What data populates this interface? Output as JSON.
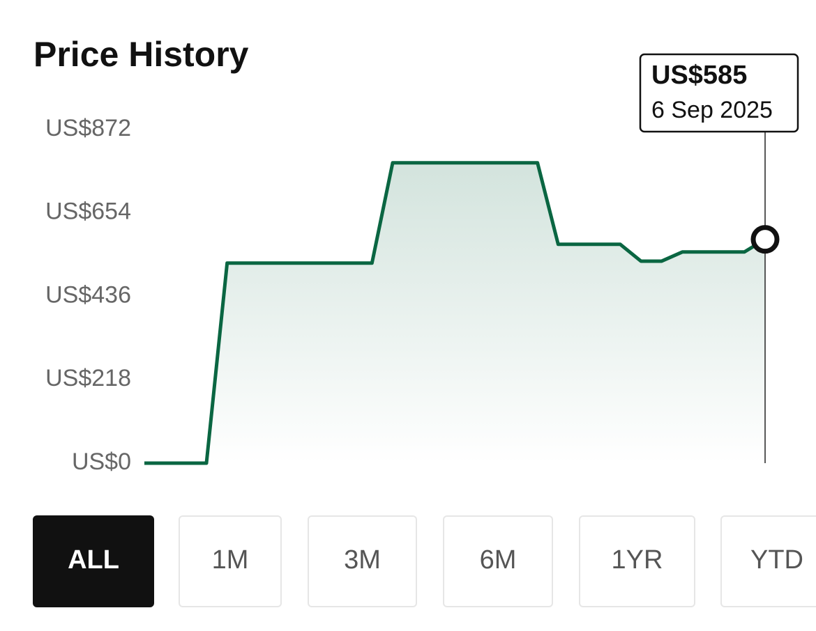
{
  "title": "Price History",
  "chart_data": {
    "type": "line",
    "categories": [
      null,
      null,
      null,
      null,
      null,
      null,
      null,
      null,
      null,
      null,
      null,
      null,
      null,
      null,
      null,
      null,
      null,
      null,
      null,
      null,
      null,
      null,
      null,
      null,
      null,
      null,
      null,
      null,
      null,
      null,
      null
    ],
    "series": [
      {
        "color": "#0a6642",
        "values": [
          0,
          0,
          0,
          0,
          523,
          523,
          523,
          523,
          523,
          523,
          523,
          523,
          785,
          785,
          785,
          785,
          785,
          785,
          785,
          785,
          572,
          572,
          572,
          572,
          528,
          528,
          552,
          552,
          552,
          552,
          585
        ]
      }
    ],
    "ylim": [
      0,
      872
    ],
    "yticks": [
      {
        "value": 0,
        "label": "US$0"
      },
      {
        "value": 218,
        "label": "US$218"
      },
      {
        "value": 436,
        "label": "US$436"
      },
      {
        "value": 654,
        "label": "US$654"
      },
      {
        "value": 872,
        "label": "US$872"
      }
    ],
    "tooltip": {
      "value_label": "US$585",
      "date": "6 Sep 2025"
    }
  },
  "ranges": {
    "buttons": [
      "ALL",
      "1M",
      "3M",
      "6M",
      "1YR",
      "YTD"
    ],
    "active": "ALL"
  }
}
